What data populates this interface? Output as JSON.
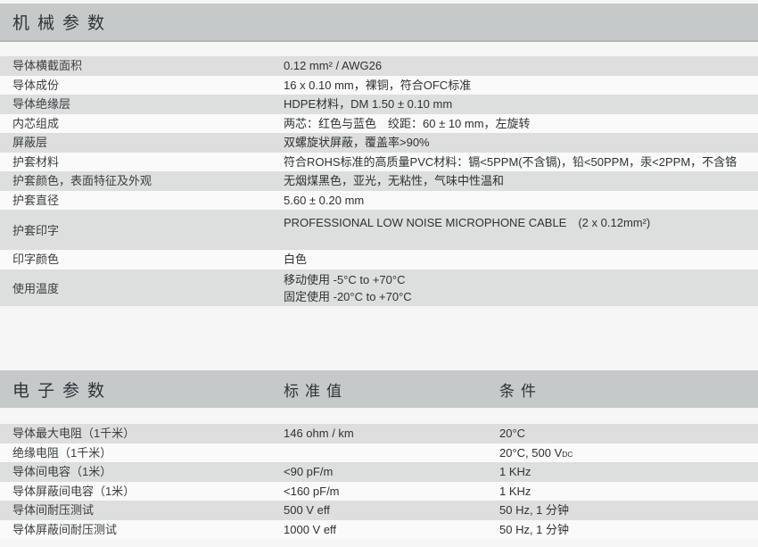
{
  "mech": {
    "title": "机械参数",
    "rows": [
      {
        "label": "导体横截面积",
        "value": "0.12 mm² / AWG26"
      },
      {
        "label": "导体成份",
        "value": "16 x 0.10 mm，裸铜，符合OFC标准"
      },
      {
        "label": "导体绝缘层",
        "value": "HDPE材料，DM 1.50 ± 0.10 mm"
      },
      {
        "label": "内芯组成",
        "value": "两芯：红色与蓝色　绞距：60 ± 10 mm，左旋转"
      },
      {
        "label": "屏蔽层",
        "value": "双螺旋状屏蔽，覆盖率>90%"
      },
      {
        "label": "护套材料",
        "value": "符合ROHS标准的高质量PVC材料：镉<5PPM(不含镉)，铅<50PPM，汞<2PPM，不含铬"
      },
      {
        "label": "护套颜色，表面特征及外观",
        "value": "无烟煤黑色，亚光，无粘性，气味中性温和"
      },
      {
        "label": "护套直径",
        "value": "5.60 ± 0.20 mm"
      },
      {
        "label": "护套印字",
        "value": "PROFESSIONAL LOW NOISE MICROPHONE CABLE　(2 x 0.12mm²)"
      },
      {
        "label": "印字颜色",
        "value": "白色"
      },
      {
        "label": "使用温度",
        "value_line1": "移动使用  -5°C to +70°C",
        "value_line2": "固定使用  -20°C to +70°C"
      }
    ]
  },
  "elec": {
    "title": "电子参数",
    "col_value": "标准值",
    "col_cond": "条件",
    "rows": [
      {
        "label": "导体最大电阻（1千米）",
        "value": "146 ohm / km",
        "cond": "20°C"
      },
      {
        "label": "绝缘电阻（1千米）",
        "value": "",
        "cond": "20°C, 500 V",
        "cond_sub": "DC"
      },
      {
        "label": "导体间电容（1米）",
        "value": "<90 pF/m",
        "cond": "1 KHz"
      },
      {
        "label": "导体屏蔽间电容（1米）",
        "value": "<160 pF/m",
        "cond": "1 KHz"
      },
      {
        "label": "导体间耐压测试",
        "value": "500 V eff",
        "cond": "50 Hz, 1 分钟"
      },
      {
        "label": "导体屏蔽间耐压测试",
        "value": "1000 V eff",
        "cond": "50 Hz, 1 分钟"
      }
    ]
  },
  "colors": {
    "header_band": "#c6c9ca",
    "row_gray": "#dcdfde",
    "row_white": "#f9faf9",
    "text": "#33373a"
  }
}
